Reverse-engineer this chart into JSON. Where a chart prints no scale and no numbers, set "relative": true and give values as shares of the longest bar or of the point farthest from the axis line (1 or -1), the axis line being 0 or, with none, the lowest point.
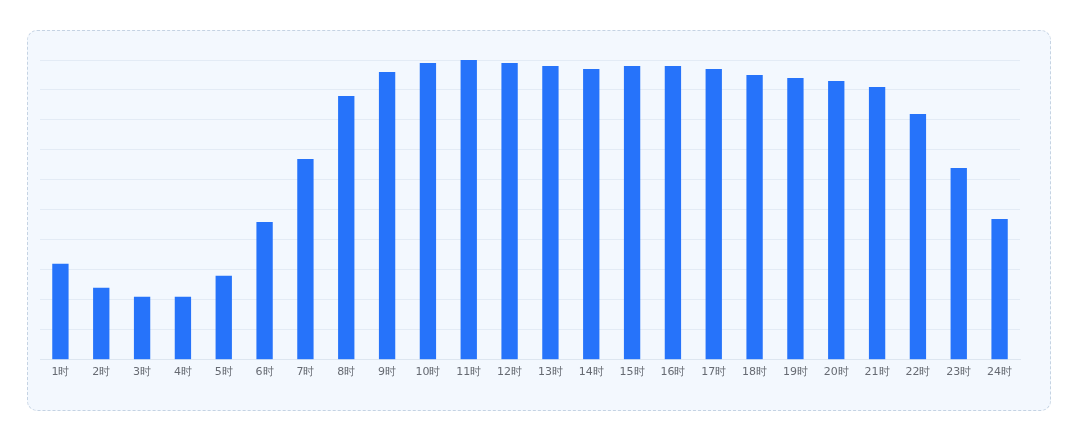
{
  "chart_data": {
    "type": "bar",
    "relative": true,
    "grid": "y",
    "legend": false,
    "color": "#2673fa",
    "categories": [
      "1时",
      "2时",
      "3时",
      "4时",
      "5时",
      "6时",
      "7时",
      "8时",
      "9时",
      "10时",
      "11时",
      "12时",
      "13时",
      "14时",
      "15时",
      "16时",
      "17时",
      "18时",
      "19时",
      "20时",
      "21时",
      "22时",
      "23时",
      "24时"
    ],
    "values": [
      0.32,
      0.24,
      0.21,
      0.21,
      0.28,
      0.46,
      0.67,
      0.88,
      0.96,
      0.99,
      1,
      0.99,
      0.98,
      0.97,
      0.98,
      0.98,
      0.97,
      0.95,
      0.94,
      0.93,
      0.91,
      0.82,
      0.64,
      0.47
    ]
  }
}
